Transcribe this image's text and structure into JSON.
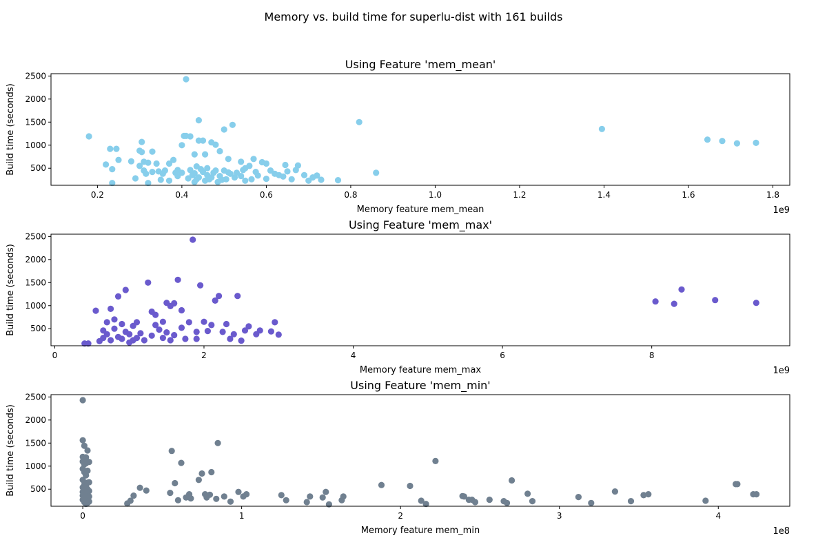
{
  "figure": {
    "suptitle": "Memory vs. build time for superlu-dist with 161 builds"
  },
  "chart_data": [
    {
      "type": "scatter",
      "title": "Using Feature 'mem_mean'",
      "xlabel": "Memory feature mem_mean",
      "ylabel": "Build time (seconds)",
      "x_offset_label": "1e9",
      "x_scale": 1000000000,
      "xlim": [
        0.09,
        1.84
      ],
      "ylim": [
        130,
        2550
      ],
      "xticks": [
        0.2,
        0.4,
        0.6,
        0.8,
        1.0,
        1.2,
        1.4,
        1.6,
        1.8
      ],
      "xtick_labels": [
        "0.2",
        "0.4",
        "0.6",
        "0.8",
        "1.0",
        "1.2",
        "1.4",
        "1.6",
        "1.8"
      ],
      "yticks": [
        500,
        1000,
        1500,
        2000,
        2500
      ],
      "ytick_labels": [
        "500",
        "1000",
        "1500",
        "2000",
        "2500"
      ],
      "color": "#87ceeb",
      "grid": false,
      "points": [
        [
          0.18,
          1190
        ],
        [
          0.22,
          580
        ],
        [
          0.23,
          920
        ],
        [
          0.235,
          480
        ],
        [
          0.235,
          180
        ],
        [
          0.245,
          920
        ],
        [
          0.25,
          680
        ],
        [
          0.28,
          650
        ],
        [
          0.29,
          280
        ],
        [
          0.3,
          550
        ],
        [
          0.3,
          880
        ],
        [
          0.305,
          850
        ],
        [
          0.305,
          1070
        ],
        [
          0.31,
          640
        ],
        [
          0.31,
          450
        ],
        [
          0.315,
          380
        ],
        [
          0.32,
          180
        ],
        [
          0.32,
          620
        ],
        [
          0.33,
          860
        ],
        [
          0.33,
          420
        ],
        [
          0.34,
          600
        ],
        [
          0.345,
          430
        ],
        [
          0.35,
          250
        ],
        [
          0.355,
          380
        ],
        [
          0.36,
          450
        ],
        [
          0.37,
          600
        ],
        [
          0.37,
          230
        ],
        [
          0.38,
          680
        ],
        [
          0.385,
          400
        ],
        [
          0.39,
          460
        ],
        [
          0.39,
          330
        ],
        [
          0.4,
          400
        ],
        [
          0.4,
          1000
        ],
        [
          0.405,
          1200
        ],
        [
          0.41,
          2430
        ],
        [
          0.41,
          1200
        ],
        [
          0.415,
          280
        ],
        [
          0.42,
          460
        ],
        [
          0.42,
          1190
        ],
        [
          0.425,
          350
        ],
        [
          0.43,
          200
        ],
        [
          0.43,
          800
        ],
        [
          0.43,
          390
        ],
        [
          0.435,
          540
        ],
        [
          0.435,
          260
        ],
        [
          0.44,
          1100
        ],
        [
          0.44,
          300
        ],
        [
          0.44,
          1540
        ],
        [
          0.445,
          480
        ],
        [
          0.45,
          420
        ],
        [
          0.45,
          1100
        ],
        [
          0.455,
          800
        ],
        [
          0.455,
          230
        ],
        [
          0.46,
          350
        ],
        [
          0.46,
          500
        ],
        [
          0.465,
          260
        ],
        [
          0.47,
          300
        ],
        [
          0.47,
          1060
        ],
        [
          0.475,
          400
        ],
        [
          0.48,
          450
        ],
        [
          0.48,
          1010
        ],
        [
          0.485,
          200
        ],
        [
          0.49,
          330
        ],
        [
          0.49,
          870
        ],
        [
          0.495,
          250
        ],
        [
          0.5,
          450
        ],
        [
          0.5,
          1340
        ],
        [
          0.505,
          260
        ],
        [
          0.51,
          700
        ],
        [
          0.51,
          410
        ],
        [
          0.515,
          380
        ],
        [
          0.52,
          1440
        ],
        [
          0.525,
          300
        ],
        [
          0.53,
          400
        ],
        [
          0.54,
          640
        ],
        [
          0.54,
          330
        ],
        [
          0.545,
          460
        ],
        [
          0.55,
          230
        ],
        [
          0.55,
          500
        ],
        [
          0.56,
          550
        ],
        [
          0.565,
          260
        ],
        [
          0.57,
          700
        ],
        [
          0.575,
          420
        ],
        [
          0.58,
          340
        ],
        [
          0.59,
          630
        ],
        [
          0.6,
          600
        ],
        [
          0.6,
          270
        ],
        [
          0.61,
          450
        ],
        [
          0.62,
          380
        ],
        [
          0.63,
          350
        ],
        [
          0.64,
          320
        ],
        [
          0.645,
          570
        ],
        [
          0.65,
          430
        ],
        [
          0.66,
          260
        ],
        [
          0.67,
          460
        ],
        [
          0.675,
          560
        ],
        [
          0.69,
          350
        ],
        [
          0.7,
          230
        ],
        [
          0.71,
          300
        ],
        [
          0.72,
          340
        ],
        [
          0.73,
          250
        ],
        [
          0.77,
          240
        ],
        [
          0.82,
          1500
        ],
        [
          0.86,
          400
        ],
        [
          1.395,
          1350
        ],
        [
          1.645,
          1120
        ],
        [
          1.68,
          1090
        ],
        [
          1.715,
          1040
        ],
        [
          1.76,
          1050
        ]
      ]
    },
    {
      "type": "scatter",
      "title": "Using Feature 'mem_max'",
      "xlabel": "Memory feature mem_max",
      "ylabel": "Build time (seconds)",
      "x_offset_label": "1e9",
      "x_scale": 1000000000,
      "xlim": [
        -0.05,
        9.85
      ],
      "ylim": [
        130,
        2550
      ],
      "xticks": [
        0,
        2,
        4,
        6,
        8
      ],
      "xtick_labels": [
        "0",
        "2",
        "4",
        "6",
        "8"
      ],
      "yticks": [
        500,
        1000,
        1500,
        2000,
        2500
      ],
      "ytick_labels": [
        "500",
        "1000",
        "1500",
        "2000",
        "2500"
      ],
      "color": "#6a5acd",
      "grid": false,
      "points": [
        [
          0.4,
          180
        ],
        [
          0.45,
          180
        ],
        [
          0.55,
          890
        ],
        [
          0.6,
          230
        ],
        [
          0.65,
          300
        ],
        [
          0.65,
          460
        ],
        [
          0.7,
          640
        ],
        [
          0.7,
          380
        ],
        [
          0.75,
          250
        ],
        [
          0.75,
          930
        ],
        [
          0.8,
          500
        ],
        [
          0.8,
          700
        ],
        [
          0.85,
          1200
        ],
        [
          0.85,
          320
        ],
        [
          0.9,
          600
        ],
        [
          0.9,
          280
        ],
        [
          0.95,
          430
        ],
        [
          0.95,
          1340
        ],
        [
          1.0,
          380
        ],
        [
          1.0,
          200
        ],
        [
          1.05,
          560
        ],
        [
          1.05,
          250
        ],
        [
          1.1,
          300
        ],
        [
          1.1,
          640
        ],
        [
          1.15,
          400
        ],
        [
          1.2,
          250
        ],
        [
          1.25,
          1500
        ],
        [
          1.3,
          870
        ],
        [
          1.3,
          350
        ],
        [
          1.35,
          580
        ],
        [
          1.35,
          800
        ],
        [
          1.4,
          480
        ],
        [
          1.45,
          650
        ],
        [
          1.45,
          300
        ],
        [
          1.5,
          1060
        ],
        [
          1.5,
          420
        ],
        [
          1.55,
          990
        ],
        [
          1.55,
          250
        ],
        [
          1.6,
          360
        ],
        [
          1.6,
          1050
        ],
        [
          1.65,
          1560
        ],
        [
          1.7,
          520
        ],
        [
          1.7,
          900
        ],
        [
          1.75,
          280
        ],
        [
          1.8,
          640
        ],
        [
          1.85,
          2430
        ],
        [
          1.9,
          430
        ],
        [
          1.9,
          280
        ],
        [
          1.95,
          1440
        ],
        [
          2.0,
          650
        ],
        [
          2.05,
          450
        ],
        [
          2.1,
          580
        ],
        [
          2.15,
          1110
        ],
        [
          2.2,
          1210
        ],
        [
          2.25,
          430
        ],
        [
          2.3,
          600
        ],
        [
          2.35,
          280
        ],
        [
          2.4,
          380
        ],
        [
          2.45,
          1210
        ],
        [
          2.5,
          240
        ],
        [
          2.55,
          460
        ],
        [
          2.6,
          550
        ],
        [
          2.7,
          380
        ],
        [
          2.75,
          460
        ],
        [
          2.9,
          440
        ],
        [
          2.95,
          640
        ],
        [
          3.0,
          370
        ],
        [
          8.05,
          1090
        ],
        [
          8.3,
          1040
        ],
        [
          8.4,
          1350
        ],
        [
          8.85,
          1120
        ],
        [
          9.4,
          1060
        ]
      ]
    },
    {
      "type": "scatter",
      "title": "Using Feature 'mem_min'",
      "xlabel": "Memory feature mem_min",
      "ylabel": "Build time (seconds)",
      "x_offset_label": "1e8",
      "x_scale": 100000000,
      "xlim": [
        -0.2,
        4.45
      ],
      "ylim": [
        130,
        2550
      ],
      "xticks": [
        0,
        1,
        2,
        3,
        4
      ],
      "xtick_labels": [
        "0",
        "1",
        "2",
        "3",
        "4"
      ],
      "yticks": [
        500,
        1000,
        1500,
        2000,
        2500
      ],
      "ytick_labels": [
        "500",
        "1000",
        "1500",
        "2000",
        "2500"
      ],
      "color": "#708090",
      "grid": false,
      "points": [
        [
          0.0,
          2430
        ],
        [
          0.0,
          1560
        ],
        [
          0.01,
          1440
        ],
        [
          0.0,
          1200
        ],
        [
          0.02,
          1190
        ],
        [
          0.03,
          1340
        ],
        [
          0.0,
          1100
        ],
        [
          0.04,
          1090
        ],
        [
          0.02,
          1060
        ],
        [
          0.01,
          1040
        ],
        [
          0.0,
          940
        ],
        [
          0.03,
          900
        ],
        [
          0.01,
          870
        ],
        [
          0.02,
          800
        ],
        [
          0.0,
          700
        ],
        [
          0.03,
          640
        ],
        [
          0.04,
          650
        ],
        [
          0.01,
          600
        ],
        [
          0.02,
          560
        ],
        [
          0.0,
          540
        ],
        [
          0.03,
          500
        ],
        [
          0.01,
          480
        ],
        [
          0.04,
          460
        ],
        [
          0.0,
          440
        ],
        [
          0.02,
          420
        ],
        [
          0.03,
          400
        ],
        [
          0.01,
          380
        ],
        [
          0.0,
          360
        ],
        [
          0.04,
          340
        ],
        [
          0.02,
          330
        ],
        [
          0.01,
          300
        ],
        [
          0.03,
          290
        ],
        [
          0.0,
          270
        ],
        [
          0.02,
          250
        ],
        [
          0.04,
          230
        ],
        [
          0.01,
          220
        ],
        [
          0.03,
          200
        ],
        [
          0.02,
          180
        ],
        [
          0.28,
          190
        ],
        [
          0.3,
          250
        ],
        [
          0.32,
          360
        ],
        [
          0.36,
          530
        ],
        [
          0.4,
          470
        ],
        [
          0.55,
          420
        ],
        [
          0.56,
          1330
        ],
        [
          0.58,
          630
        ],
        [
          0.6,
          260
        ],
        [
          0.62,
          1070
        ],
        [
          0.65,
          320
        ],
        [
          0.67,
          390
        ],
        [
          0.68,
          300
        ],
        [
          0.73,
          700
        ],
        [
          0.75,
          840
        ],
        [
          0.77,
          390
        ],
        [
          0.78,
          320
        ],
        [
          0.8,
          380
        ],
        [
          0.81,
          870
        ],
        [
          0.84,
          290
        ],
        [
          0.85,
          1500
        ],
        [
          0.89,
          340
        ],
        [
          0.93,
          230
        ],
        [
          0.98,
          440
        ],
        [
          1.01,
          340
        ],
        [
          1.03,
          390
        ],
        [
          1.25,
          370
        ],
        [
          1.28,
          260
        ],
        [
          1.41,
          220
        ],
        [
          1.43,
          340
        ],
        [
          1.51,
          320
        ],
        [
          1.53,
          440
        ],
        [
          1.55,
          170
        ],
        [
          1.63,
          260
        ],
        [
          1.64,
          340
        ],
        [
          1.88,
          590
        ],
        [
          2.06,
          570
        ],
        [
          2.13,
          250
        ],
        [
          2.16,
          180
        ],
        [
          2.22,
          1110
        ],
        [
          2.39,
          350
        ],
        [
          2.4,
          340
        ],
        [
          2.43,
          270
        ],
        [
          2.45,
          270
        ],
        [
          2.47,
          220
        ],
        [
          2.56,
          270
        ],
        [
          2.65,
          240
        ],
        [
          2.67,
          200
        ],
        [
          2.7,
          690
        ],
        [
          2.8,
          400
        ],
        [
          2.83,
          240
        ],
        [
          3.12,
          330
        ],
        [
          3.2,
          200
        ],
        [
          3.35,
          450
        ],
        [
          3.45,
          240
        ],
        [
          3.53,
          370
        ],
        [
          3.56,
          390
        ],
        [
          3.92,
          250
        ],
        [
          4.11,
          610
        ],
        [
          4.12,
          610
        ],
        [
          4.22,
          390
        ],
        [
          4.24,
          390
        ]
      ]
    }
  ]
}
